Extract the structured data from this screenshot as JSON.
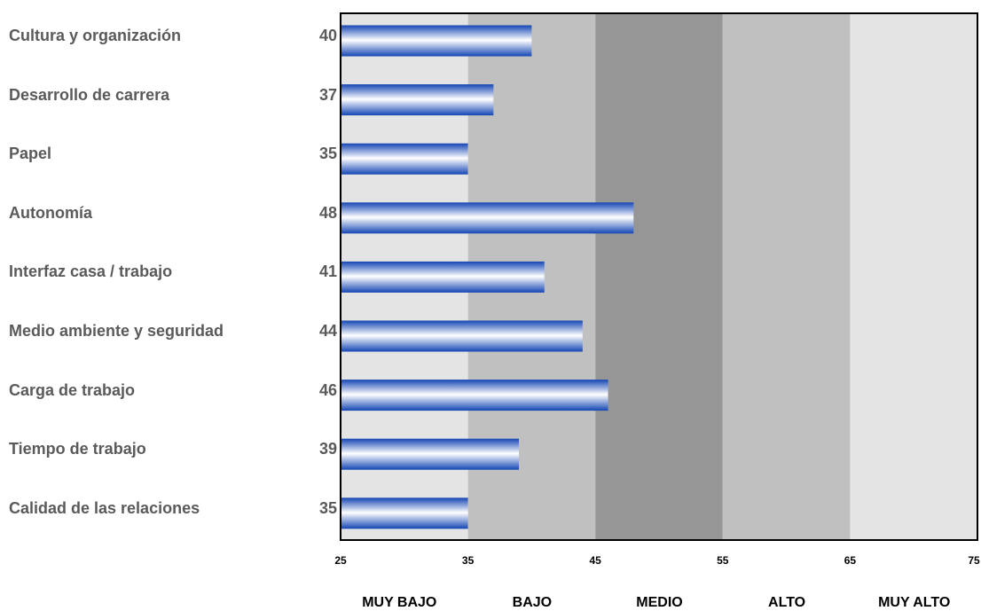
{
  "chart_data": {
    "type": "bar",
    "orientation": "horizontal",
    "categories": [
      "Cultura y organización",
      "Desarrollo de carrera",
      "Papel",
      "Autonomía",
      "Interfaz casa / trabajo",
      "Medio ambiente y seguridad",
      "Carga de trabajo",
      "Tiempo de trabajo",
      "Calidad de las relaciones"
    ],
    "values": [
      40,
      37,
      35,
      48,
      41,
      44,
      46,
      39,
      35
    ],
    "value_labels": [
      "40",
      "37",
      "35",
      "48",
      "41",
      "44",
      "46",
      "39",
      "35"
    ],
    "xlim": [
      25,
      75
    ],
    "xticks": [
      "25",
      "35",
      "45",
      "55",
      "65",
      "75"
    ],
    "bands": [
      {
        "label": "MUY BAJO",
        "range": [
          25,
          35
        ],
        "color": "#e4e4e4"
      },
      {
        "label": "BAJO",
        "range": [
          35,
          45
        ],
        "color": "#c0c0c0"
      },
      {
        "label": "MEDIO",
        "range": [
          45,
          55
        ],
        "color": "#969696"
      },
      {
        "label": "ALTO",
        "range": [
          55,
          65
        ],
        "color": "#c0c0c0"
      },
      {
        "label": "MUY ALTO",
        "range": [
          65,
          75
        ],
        "color": "#e4e4e4"
      }
    ],
    "bar_color": "#1446b4",
    "bar_highlight_color": "#ffffff",
    "title": "",
    "xlabel": "",
    "ylabel": "",
    "grid": false,
    "legend": "none"
  }
}
